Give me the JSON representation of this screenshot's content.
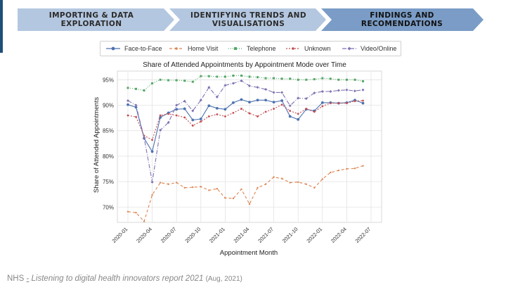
{
  "steps": [
    {
      "label": "IMPORTING & DATA EXPLORATION"
    },
    {
      "line1": "IDENTIFYING TRENDS AND",
      "line2": "VISUALISATIONS"
    },
    {
      "line1": "FINDINGS AND",
      "line2": "RECOMENDATIONS"
    }
  ],
  "colors": {
    "step1_bg": "#b4c7e0",
    "step2_bg": "#b4c7e0",
    "step3_bg": "#7a9cc6",
    "step_text": "#2b2b2b",
    "step3_text": "#111111",
    "accent_bar": "#1f4e79"
  },
  "chart_data": {
    "type": "line",
    "title": "Share of Attended Appointments by Appointment Mode over Time",
    "xlabel": "Appointment Month",
    "ylabel": "Share of Attended Appointments",
    "x": [
      "2020-01",
      "2020-02",
      "2020-03",
      "2020-04",
      "2020-05",
      "2020-06",
      "2020-07",
      "2020-08",
      "2020-09",
      "2020-10",
      "2020-11",
      "2020-12",
      "2021-01",
      "2021-02",
      "2021-03",
      "2021-04",
      "2021-05",
      "2021-06",
      "2021-07",
      "2021-08",
      "2021-09",
      "2021-10",
      "2021-11",
      "2021-12",
      "2022-01",
      "2022-02",
      "2022-03",
      "2022-04",
      "2022-05",
      "2022-06"
    ],
    "xticks": [
      "2020-01",
      "2020-04",
      "2020-07",
      "2020-10",
      "2021-01",
      "2021-04",
      "2021-07",
      "2021-10",
      "2022-01",
      "2022-04",
      "2022-07"
    ],
    "yticks": [
      70,
      75,
      80,
      85,
      90,
      95
    ],
    "ytick_labels": [
      "70%",
      "75%",
      "80%",
      "85%",
      "90%",
      "95%"
    ],
    "ylim": [
      67.0,
      96.7
    ],
    "grid": true,
    "legend_position": "top",
    "series": [
      {
        "name": "Face-to-Face",
        "color": "#4c72b0",
        "dash": "",
        "marker": "circle",
        "values": [
          90.1,
          89.6,
          83.5,
          80.9,
          87.6,
          88.5,
          89.2,
          89.3,
          87.1,
          87.3,
          89.9,
          89.4,
          89.2,
          90.5,
          91.1,
          90.6,
          91.0,
          91.0,
          90.6,
          90.9,
          87.8,
          87.2,
          89.2,
          88.9,
          90.5,
          90.5,
          90.4,
          90.5,
          91.0,
          90.4
        ]
      },
      {
        "name": "Home Visit",
        "color": "#dd8452",
        "dash": "4,3",
        "marker": "x",
        "values": [
          69.1,
          68.9,
          67.2,
          72.4,
          74.8,
          74.5,
          74.8,
          73.8,
          73.9,
          74.0,
          73.3,
          73.6,
          71.8,
          71.7,
          73.5,
          70.6,
          73.8,
          74.5,
          75.9,
          75.6,
          74.8,
          74.9,
          74.5,
          73.8,
          75.5,
          76.8,
          77.2,
          77.5,
          77.6,
          78.1
        ]
      },
      {
        "name": "Telephone",
        "color": "#55a868",
        "dash": "1,2",
        "marker": "square",
        "values": [
          93.4,
          93.2,
          92.9,
          94.3,
          95.0,
          94.9,
          94.9,
          94.8,
          94.6,
          95.7,
          95.7,
          95.6,
          95.6,
          95.8,
          95.8,
          95.6,
          95.5,
          95.3,
          95.3,
          95.2,
          95.2,
          95.0,
          95.0,
          95.1,
          95.3,
          95.2,
          95.0,
          95.0,
          95.0,
          94.7
        ]
      },
      {
        "name": "Unknown",
        "color": "#c44e52",
        "dash": "2,2",
        "marker": "circle",
        "values": [
          88.0,
          87.7,
          84.0,
          83.2,
          88.0,
          88.3,
          88.0,
          87.6,
          86.0,
          86.8,
          87.8,
          88.2,
          87.8,
          88.5,
          89.3,
          88.4,
          87.8,
          88.7,
          89.3,
          90.1,
          88.9,
          88.3,
          89.3,
          88.7,
          89.8,
          90.4,
          90.4,
          90.4,
          90.8,
          90.9
        ]
      },
      {
        "name": "Video/Online",
        "color": "#8172b2",
        "dash": "6,2,1,2",
        "marker": "diamond",
        "values": [
          90.9,
          90.0,
          83.6,
          74.9,
          85.1,
          86.6,
          90.0,
          90.8,
          88.9,
          91.0,
          93.5,
          91.6,
          93.9,
          94.3,
          94.8,
          93.8,
          93.5,
          93.1,
          92.5,
          92.5,
          89.9,
          91.4,
          91.3,
          92.4,
          92.7,
          92.7,
          92.9,
          93.0,
          92.8,
          93.0
        ]
      }
    ]
  },
  "citation": {
    "source": "NHS",
    "dash": "-",
    "title": "Listening to digital health innovators report 2021",
    "date": "(Aug, 2021)"
  }
}
